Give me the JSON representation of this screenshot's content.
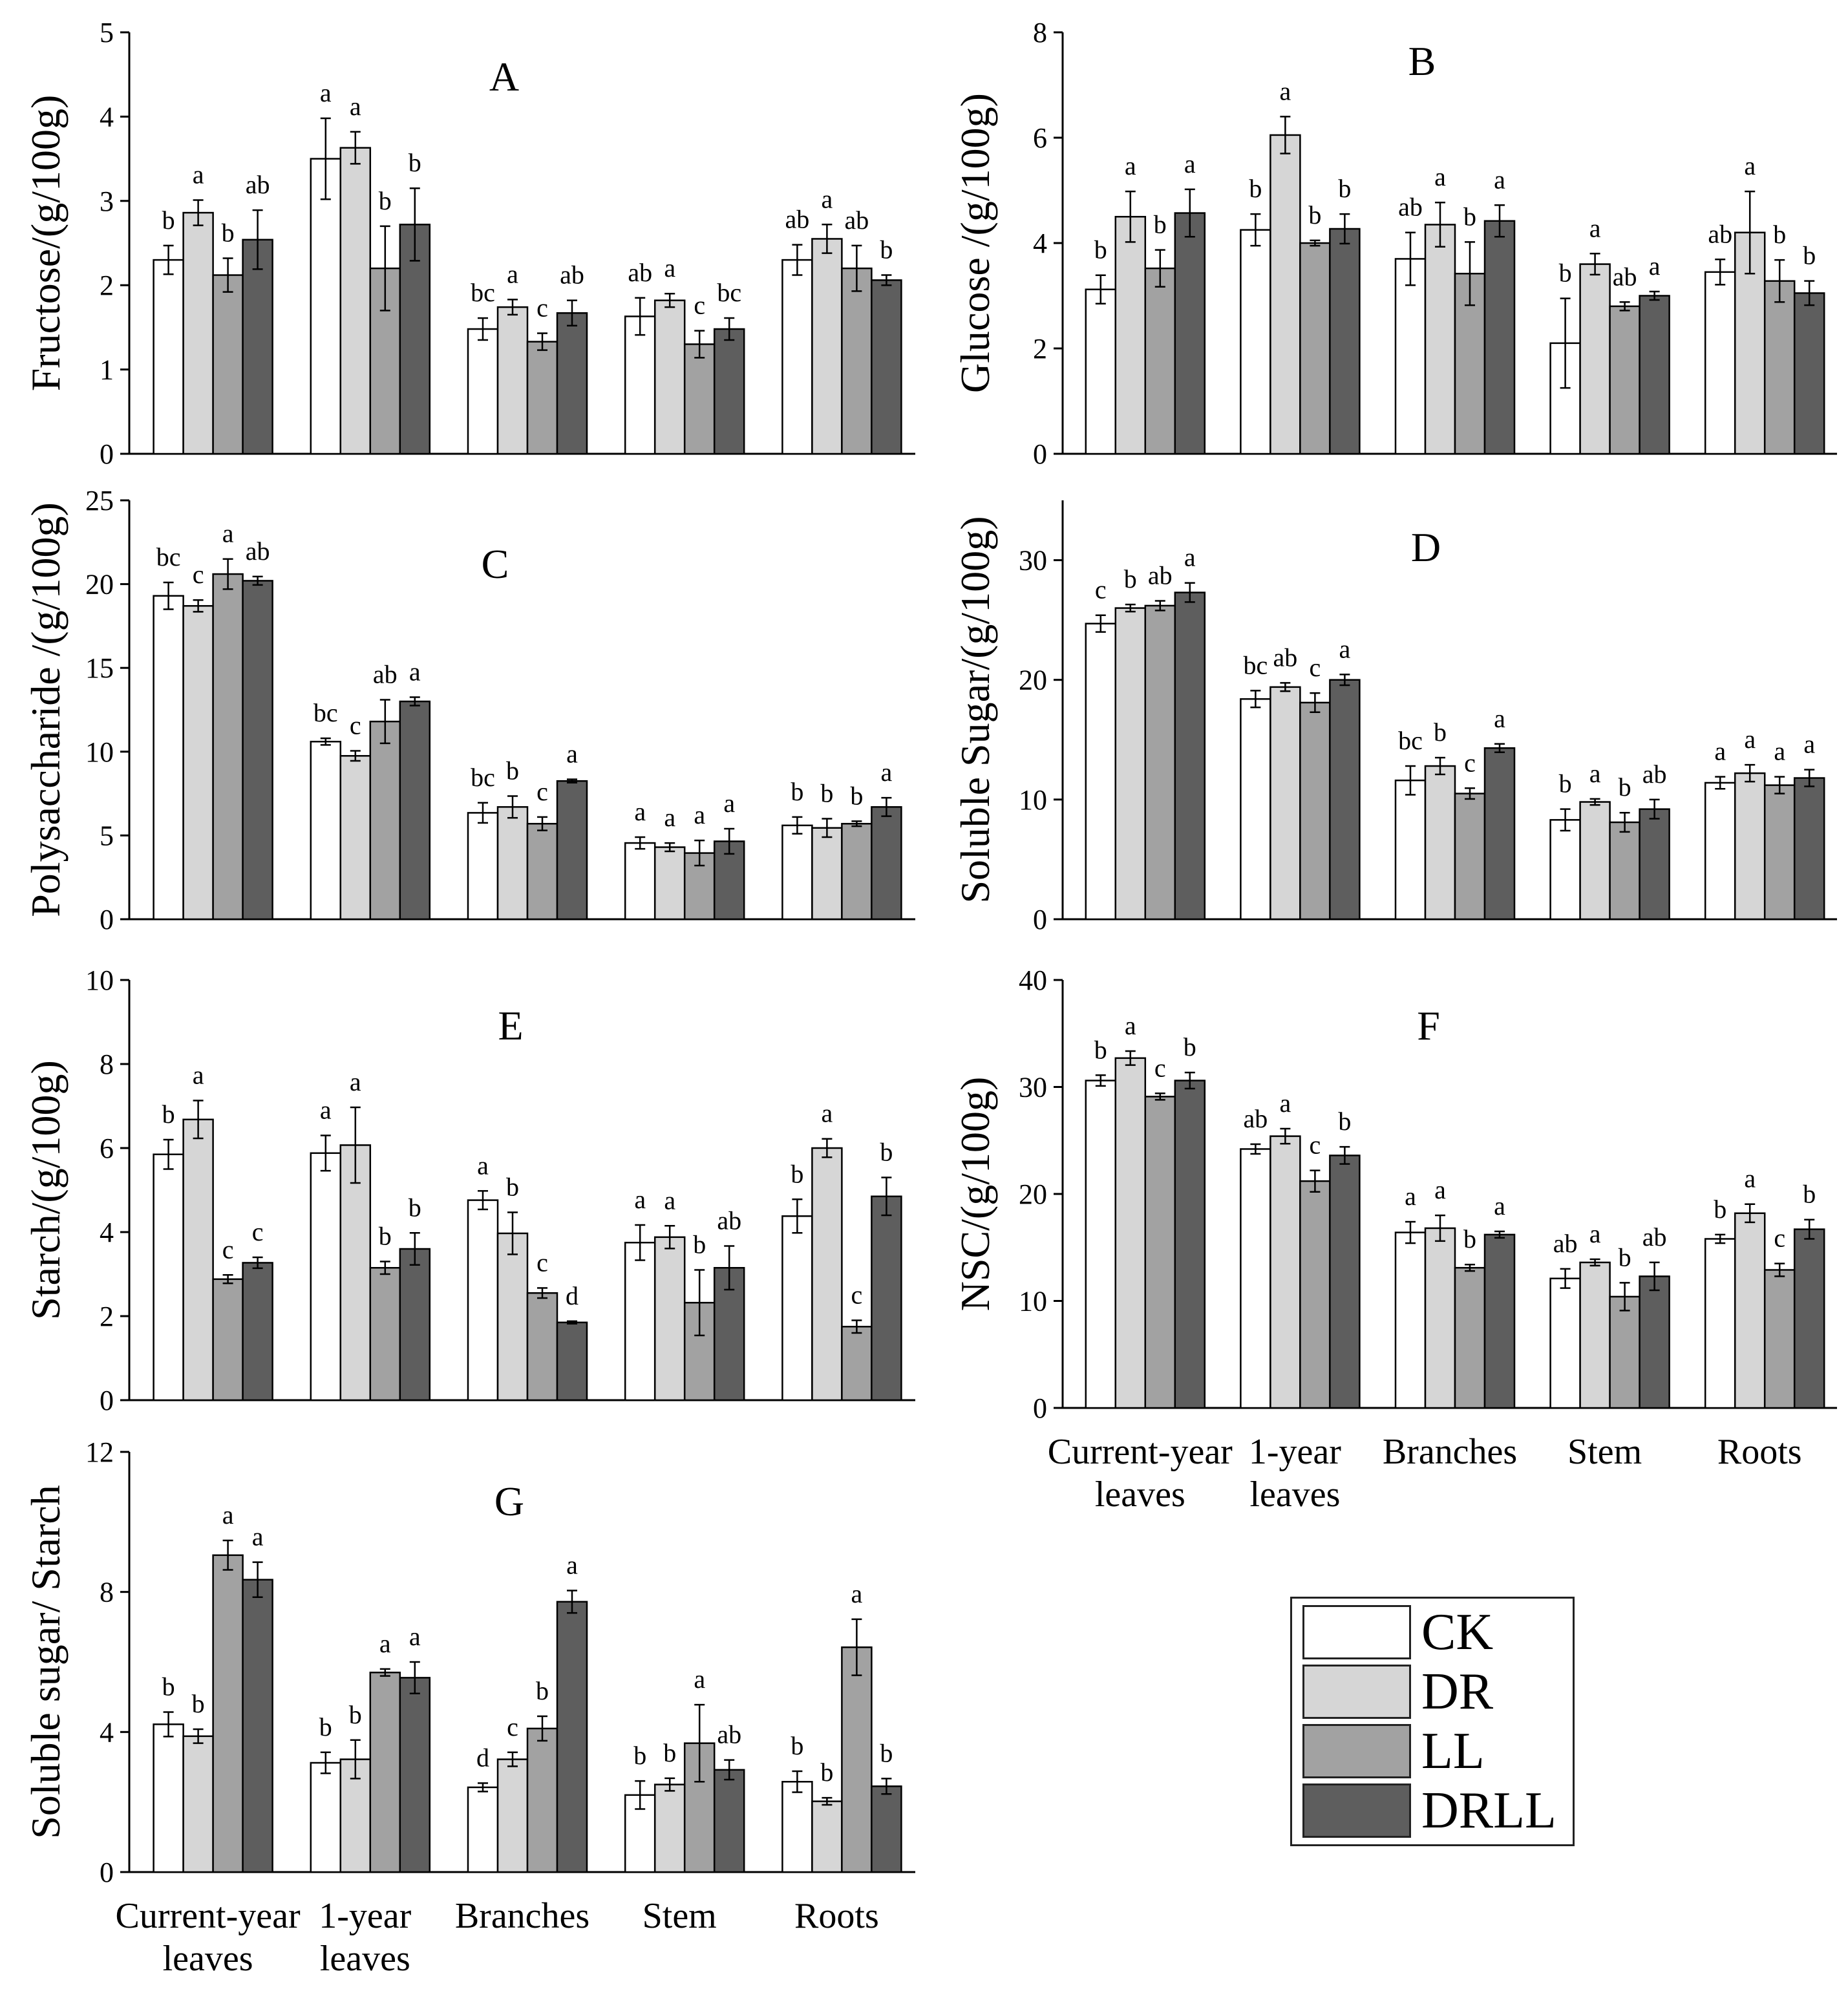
{
  "colors": {
    "CK": "#ffffff",
    "DR": "#d6d6d6",
    "LL": "#a2a2a2",
    "DRLL": "#5e5e5e",
    "axis": "#000000"
  },
  "legend": {
    "items": [
      {
        "name": "CK",
        "color": "#ffffff"
      },
      {
        "name": "DR",
        "color": "#d6d6d6"
      },
      {
        "name": "LL",
        "color": "#a2a2a2"
      },
      {
        "name": "DRLL",
        "color": "#5e5e5e"
      }
    ]
  },
  "chart_data": [
    {
      "panel": "A",
      "type": "bar",
      "ylabel": "Fructose/(g/100g)",
      "ylim": [
        0,
        5
      ],
      "yticks": [
        0,
        1,
        2,
        3,
        4,
        5
      ],
      "categories": [
        "Current-year leaves",
        "1-year leaves",
        "Branches",
        "Stem",
        "Roots"
      ],
      "category_label_lines": [],
      "grid": false,
      "series": [
        {
          "name": "CK",
          "values": [
            2.3,
            3.5,
            1.48,
            1.63,
            2.3
          ],
          "errors": [
            0.17,
            0.48,
            0.13,
            0.22,
            0.18
          ],
          "letters": [
            "b",
            "a",
            "bc",
            "ab",
            "ab"
          ]
        },
        {
          "name": "DR",
          "values": [
            2.86,
            3.63,
            1.74,
            1.82,
            2.55
          ],
          "errors": [
            0.15,
            0.19,
            0.09,
            0.08,
            0.17
          ],
          "letters": [
            "a",
            "a",
            "a",
            "a",
            "a"
          ]
        },
        {
          "name": "LL",
          "values": [
            2.12,
            2.2,
            1.33,
            1.3,
            2.2
          ],
          "errors": [
            0.2,
            0.5,
            0.1,
            0.16,
            0.27
          ],
          "letters": [
            "b",
            "b",
            "c",
            "c",
            "ab"
          ]
        },
        {
          "name": "DRLL",
          "values": [
            2.54,
            2.72,
            1.67,
            1.48,
            2.06
          ],
          "errors": [
            0.35,
            0.43,
            0.15,
            0.13,
            0.06
          ],
          "letters": [
            "ab",
            "b",
            "ab",
            "bc",
            "b"
          ]
        }
      ]
    },
    {
      "panel": "B",
      "type": "bar",
      "ylabel": "Glucose /(g/100g)",
      "ylim": [
        0,
        8
      ],
      "yticks": [
        0,
        2,
        4,
        6,
        8
      ],
      "categories": [
        "Current-year leaves",
        "1-year leaves",
        "Branches",
        "Stem",
        "Roots"
      ],
      "category_label_lines": [],
      "grid": false,
      "series": [
        {
          "name": "CK",
          "values": [
            3.12,
            4.25,
            3.7,
            2.1,
            3.45
          ],
          "errors": [
            0.27,
            0.3,
            0.5,
            0.85,
            0.24
          ],
          "letters": [
            "b",
            "b",
            "ab",
            "b",
            "ab"
          ]
        },
        {
          "name": "DR",
          "values": [
            4.5,
            6.05,
            4.35,
            3.6,
            4.2
          ],
          "errors": [
            0.48,
            0.35,
            0.42,
            0.2,
            0.78
          ],
          "letters": [
            "a",
            "a",
            "a",
            "a",
            "a"
          ]
        },
        {
          "name": "LL",
          "values": [
            3.52,
            4.0,
            3.42,
            2.8,
            3.28
          ],
          "errors": [
            0.35,
            0.05,
            0.6,
            0.08,
            0.4
          ],
          "letters": [
            "b",
            "b",
            "b",
            "ab",
            "b"
          ]
        },
        {
          "name": "DRLL",
          "values": [
            4.57,
            4.27,
            4.42,
            3.0,
            3.05
          ],
          "errors": [
            0.45,
            0.28,
            0.3,
            0.08,
            0.23
          ],
          "letters": [
            "a",
            "b",
            "a",
            "a",
            "b"
          ]
        }
      ]
    },
    {
      "panel": "C",
      "type": "bar",
      "ylabel": "Polysaccharide /(g/100g)",
      "ylim": [
        0,
        25
      ],
      "yticks": [
        0,
        5,
        10,
        15,
        20,
        25
      ],
      "categories": [
        "Current-year leaves",
        "1-year leaves",
        "Branches",
        "Stem",
        "Roots"
      ],
      "category_label_lines": [],
      "grid": false,
      "series": [
        {
          "name": "CK",
          "values": [
            19.3,
            10.6,
            6.35,
            4.55,
            5.6
          ],
          "errors": [
            0.8,
            0.2,
            0.6,
            0.35,
            0.5
          ],
          "letters": [
            "bc",
            "bc",
            "bc",
            "a",
            "b"
          ]
        },
        {
          "name": "DR",
          "values": [
            18.7,
            9.75,
            6.7,
            4.3,
            5.45
          ],
          "errors": [
            0.35,
            0.3,
            0.65,
            0.25,
            0.55
          ],
          "letters": [
            "c",
            "c",
            "b",
            "a",
            "b"
          ]
        },
        {
          "name": "LL",
          "values": [
            20.6,
            11.8,
            5.7,
            3.95,
            5.7
          ],
          "errors": [
            0.9,
            1.3,
            0.4,
            0.75,
            0.15
          ],
          "letters": [
            "a",
            "ab",
            "c",
            "a",
            "b"
          ]
        },
        {
          "name": "DRLL",
          "values": [
            20.2,
            13.0,
            8.25,
            4.65,
            6.7
          ],
          "errors": [
            0.25,
            0.25,
            0.1,
            0.75,
            0.55
          ],
          "letters": [
            "ab",
            "a",
            "a",
            "a",
            "a"
          ]
        }
      ]
    },
    {
      "panel": "D",
      "type": "bar",
      "ylabel": "Soluble Sugar/(g/100g)",
      "ylim": [
        0,
        35
      ],
      "yticks": [
        0,
        10,
        20,
        30
      ],
      "categories": [
        "Current-year leaves",
        "1-year leaves",
        "Branches",
        "Stem",
        "Roots"
      ],
      "category_label_lines": [],
      "grid": false,
      "series": [
        {
          "name": "CK",
          "values": [
            24.7,
            18.4,
            11.6,
            8.3,
            11.4
          ],
          "errors": [
            0.7,
            0.7,
            1.2,
            0.9,
            0.5
          ],
          "letters": [
            "c",
            "bc",
            "bc",
            "b",
            "a"
          ]
        },
        {
          "name": "DR",
          "values": [
            26.0,
            19.4,
            12.8,
            9.8,
            12.2
          ],
          "errors": [
            0.3,
            0.35,
            0.7,
            0.25,
            0.7
          ],
          "letters": [
            "b",
            "ab",
            "b",
            "a",
            "a"
          ]
        },
        {
          "name": "LL",
          "values": [
            26.2,
            18.1,
            10.5,
            8.1,
            11.2
          ],
          "errors": [
            0.4,
            0.8,
            0.45,
            0.8,
            0.7
          ],
          "letters": [
            "ab",
            "c",
            "c",
            "b",
            "a"
          ]
        },
        {
          "name": "DRLL",
          "values": [
            27.3,
            20.0,
            14.3,
            9.2,
            11.8
          ],
          "errors": [
            0.8,
            0.45,
            0.35,
            0.8,
            0.7
          ],
          "letters": [
            "a",
            "a",
            "a",
            "ab",
            "a"
          ]
        }
      ]
    },
    {
      "panel": "E",
      "type": "bar",
      "ylabel": "Starch/(g/100g)",
      "ylim": [
        0,
        10
      ],
      "yticks": [
        0,
        2,
        4,
        6,
        8,
        10
      ],
      "categories": [
        "Current-year leaves",
        "1-year leaves",
        "Branches",
        "Stem",
        "Roots"
      ],
      "category_label_lines": [],
      "grid": false,
      "series": [
        {
          "name": "CK",
          "values": [
            5.85,
            5.88,
            4.76,
            3.75,
            4.38
          ],
          "errors": [
            0.35,
            0.42,
            0.22,
            0.42,
            0.4
          ],
          "letters": [
            "b",
            "a",
            "a",
            "a",
            "b"
          ]
        },
        {
          "name": "DR",
          "values": [
            6.68,
            6.07,
            3.97,
            3.88,
            6.0
          ],
          "errors": [
            0.45,
            0.9,
            0.5,
            0.27,
            0.22
          ],
          "letters": [
            "a",
            "a",
            "b",
            "a",
            "a"
          ]
        },
        {
          "name": "LL",
          "values": [
            2.88,
            3.15,
            2.55,
            2.32,
            1.75
          ],
          "errors": [
            0.1,
            0.15,
            0.12,
            0.78,
            0.15
          ],
          "letters": [
            "c",
            "b",
            "c",
            "b",
            "c"
          ]
        },
        {
          "name": "DRLL",
          "values": [
            3.27,
            3.6,
            1.85,
            3.15,
            4.85
          ],
          "errors": [
            0.13,
            0.38,
            0.03,
            0.52,
            0.45
          ],
          "letters": [
            "c",
            "b",
            "d",
            "ab",
            "b"
          ]
        }
      ]
    },
    {
      "panel": "F",
      "type": "bar",
      "ylabel": "NSC/(g/100g)",
      "ylim": [
        0,
        40
      ],
      "yticks": [
        0,
        10,
        20,
        30,
        40
      ],
      "categories": [
        "Current-year leaves",
        "1-year leaves",
        "Branches",
        "Stem",
        "Roots"
      ],
      "category_label_lines": [
        [
          "Current-year",
          "leaves"
        ],
        [
          "1-year",
          "leaves"
        ],
        [
          "Branches"
        ],
        [
          "Stem"
        ],
        [
          "Roots"
        ]
      ],
      "grid": false,
      "series": [
        {
          "name": "CK",
          "values": [
            30.6,
            24.2,
            16.4,
            12.1,
            15.8
          ],
          "errors": [
            0.5,
            0.45,
            1.0,
            0.9,
            0.4
          ],
          "letters": [
            "b",
            "ab",
            "a",
            "ab",
            "b"
          ]
        },
        {
          "name": "DR",
          "values": [
            32.7,
            25.4,
            16.8,
            13.6,
            18.2
          ],
          "errors": [
            0.65,
            0.7,
            1.2,
            0.3,
            0.85
          ],
          "letters": [
            "a",
            "a",
            "a",
            "a",
            "a"
          ]
        },
        {
          "name": "LL",
          "values": [
            29.1,
            21.2,
            13.1,
            10.4,
            12.9
          ],
          "errors": [
            0.3,
            1.0,
            0.3,
            1.3,
            0.6
          ],
          "letters": [
            "c",
            "c",
            "b",
            "b",
            "c"
          ]
        },
        {
          "name": "DRLL",
          "values": [
            30.6,
            23.6,
            16.2,
            12.3,
            16.7
          ],
          "errors": [
            0.75,
            0.8,
            0.3,
            1.3,
            0.9
          ],
          "letters": [
            "b",
            "b",
            "a",
            "ab",
            "b"
          ]
        }
      ]
    },
    {
      "panel": "G",
      "type": "bar",
      "ylabel": "Soluble sugar/ Starch",
      "ylim": [
        0,
        12
      ],
      "yticks": [
        0,
        4,
        8,
        12
      ],
      "categories": [
        "Current-year leaves",
        "1-year leaves",
        "Branches",
        "Stem",
        "Roots"
      ],
      "category_label_lines": [
        [
          "Current-year",
          "leaves"
        ],
        [
          "1-year",
          "leaves"
        ],
        [
          "Branches"
        ],
        [
          "Stem"
        ],
        [
          "Roots"
        ]
      ],
      "grid": false,
      "series": [
        {
          "name": "CK",
          "values": [
            4.22,
            3.12,
            2.42,
            2.2,
            2.58
          ],
          "errors": [
            0.35,
            0.3,
            0.12,
            0.4,
            0.3
          ],
          "letters": [
            "b",
            "b",
            "d",
            "b",
            "b"
          ]
        },
        {
          "name": "DR",
          "values": [
            3.88,
            3.22,
            3.22,
            2.5,
            2.02
          ],
          "errors": [
            0.2,
            0.55,
            0.2,
            0.18,
            0.1
          ],
          "letters": [
            "b",
            "b",
            "c",
            "b",
            "b"
          ]
        },
        {
          "name": "LL",
          "values": [
            9.05,
            5.7,
            4.1,
            3.68,
            6.42
          ],
          "errors": [
            0.42,
            0.1,
            0.35,
            1.1,
            0.8
          ],
          "letters": [
            "a",
            "a",
            "b",
            "a",
            "a"
          ]
        },
        {
          "name": "DRLL",
          "values": [
            8.35,
            5.55,
            7.72,
            2.92,
            2.45
          ],
          "errors": [
            0.5,
            0.45,
            0.32,
            0.28,
            0.22
          ],
          "letters": [
            "a",
            "a",
            "a",
            "ab",
            "b"
          ]
        }
      ]
    }
  ]
}
